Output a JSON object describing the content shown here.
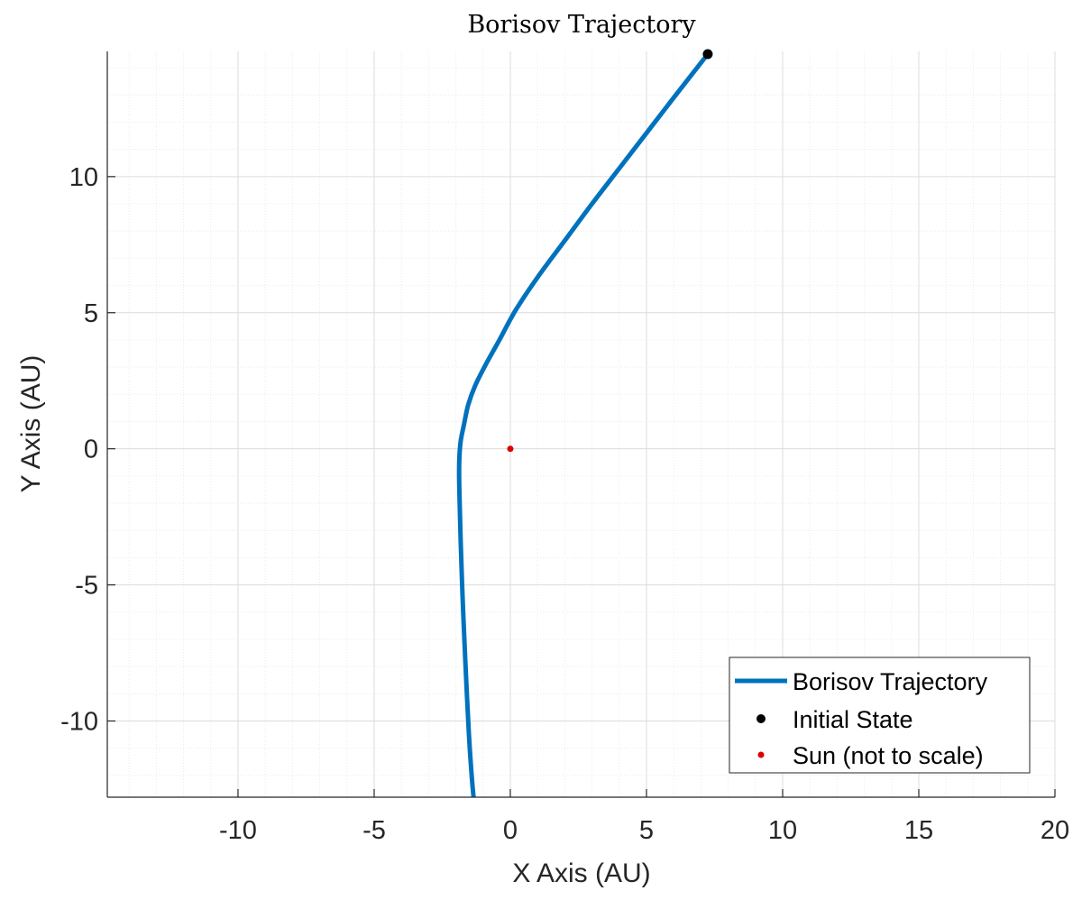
{
  "chart_data": {
    "type": "line",
    "title": "Borisov Trajectory",
    "xlabel": "X Axis (AU)",
    "ylabel": "Y Axis (AU)",
    "xlim": [
      -14.8,
      20
    ],
    "ylim": [
      -12.8,
      14.6
    ],
    "xticks": [
      -10,
      -5,
      0,
      5,
      10,
      15,
      20
    ],
    "yticks": [
      -10,
      -5,
      0,
      5,
      10
    ],
    "xtick_labels": [
      "-10",
      "-5",
      "0",
      "5",
      "10",
      "15",
      "20"
    ],
    "ytick_labels": [
      "-10",
      "-5",
      "0",
      "5",
      "10"
    ],
    "grid": "on (major and minor)",
    "legend_position": "bottom-right",
    "series": [
      {
        "name": "Borisov Trajectory",
        "kind": "line",
        "color": "#0072bd",
        "x": [
          7.25,
          6.0,
          5.0,
          4.0,
          3.0,
          2.0,
          1.0,
          0.2,
          -0.4,
          -0.9,
          -1.3,
          -1.55,
          -1.7,
          -1.82,
          -1.87,
          -1.88,
          -1.86,
          -1.82,
          -1.77,
          -1.71,
          -1.62,
          -1.52,
          -1.42,
          -1.35
        ],
        "y": [
          14.5,
          12.9,
          11.6,
          10.3,
          9.0,
          7.65,
          6.3,
          5.1,
          4.0,
          3.1,
          2.3,
          1.6,
          0.9,
          0.3,
          -0.3,
          -1.0,
          -2.0,
          -3.5,
          -5.0,
          -6.5,
          -8.5,
          -10.5,
          -12.0,
          -12.8
        ]
      },
      {
        "name": "Initial State",
        "kind": "marker",
        "color": "#000000",
        "x": [
          7.25
        ],
        "y": [
          14.5
        ]
      },
      {
        "name": "Sun (not to scale)",
        "kind": "marker",
        "color": "#e00000",
        "x": [
          0
        ],
        "y": [
          0
        ]
      }
    ]
  }
}
